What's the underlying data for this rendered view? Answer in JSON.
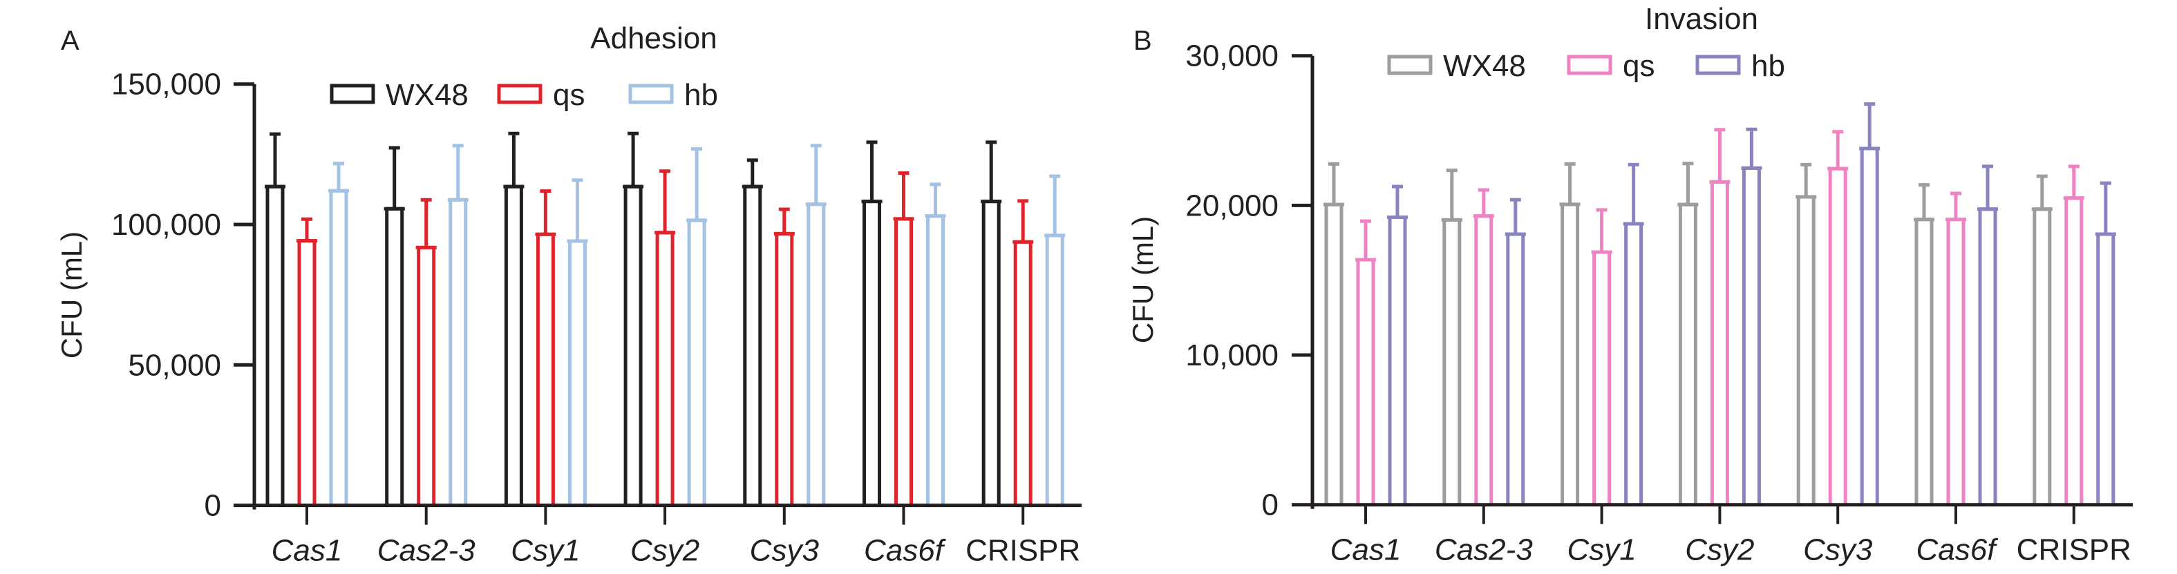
{
  "figure": {
    "panels": [
      "A",
      "B"
    ]
  },
  "chart_data": [
    {
      "panel": "A",
      "type": "bar",
      "title": "Adhesion",
      "xlabel": "",
      "ylabel": "CFU (mL)",
      "ylim": [
        0,
        150000
      ],
      "yticks": [
        0,
        50000,
        100000,
        150000
      ],
      "ytick_labels": [
        "0",
        "50,000",
        "100,000",
        "150,000"
      ],
      "grid": false,
      "legend_position": "top-center",
      "categories": [
        "Cas1",
        "Cas2-3",
        "Csy1",
        "Csy2",
        "Csy3",
        "Cas6f",
        "CRISPR"
      ],
      "category_italic": [
        true,
        true,
        true,
        true,
        true,
        true,
        false
      ],
      "series": [
        {
          "name": "WX48",
          "color": "#231f20",
          "values": [
            113500,
            105600,
            113500,
            113500,
            113500,
            108200,
            108200
          ],
          "error_upper": [
            132200,
            127300,
            132400,
            132400,
            122900,
            129300,
            129300
          ]
        },
        {
          "name": "qs",
          "color": "#e0242b",
          "values": [
            94200,
            91800,
            96500,
            97100,
            96700,
            102000,
            93800
          ],
          "error_upper": [
            101900,
            108800,
            111900,
            119000,
            105400,
            118300,
            108400
          ]
        },
        {
          "name": "hb",
          "color": "#a4c2e3",
          "values": [
            112000,
            108800,
            94100,
            101500,
            107200,
            103000,
            96100
          ],
          "error_upper": [
            121700,
            128100,
            115800,
            126900,
            128100,
            114300,
            117200
          ]
        }
      ]
    },
    {
      "panel": "B",
      "type": "bar",
      "title": "Invasion",
      "xlabel": "",
      "ylabel": "CFU (mL)",
      "ylim": [
        0,
        30000
      ],
      "yticks": [
        0,
        10000,
        20000,
        30000
      ],
      "ytick_labels": [
        "0",
        "10,000",
        "20,000",
        "30,000"
      ],
      "grid": false,
      "legend_position": "top-center",
      "categories": [
        "Cas1",
        "Cas2-3",
        "Csy1",
        "Csy2",
        "Csy3",
        "Cas6f",
        "CRISPR"
      ],
      "category_italic": [
        true,
        true,
        true,
        true,
        true,
        true,
        false
      ],
      "series": [
        {
          "name": "WX48",
          "color": "#9d9d9f",
          "values": [
            20060,
            19030,
            20070,
            20060,
            20570,
            19060,
            19750
          ],
          "error_upper": [
            22770,
            22340,
            22770,
            22800,
            22720,
            21370,
            21950
          ]
        },
        {
          "name": "qs",
          "color": "#ee82c3",
          "values": [
            16370,
            19290,
            16880,
            21570,
            22460,
            19060,
            20490
          ],
          "error_upper": [
            18950,
            21030,
            19700,
            25060,
            24920,
            20800,
            22610
          ]
        },
        {
          "name": "hb",
          "color": "#8884c0",
          "values": [
            19210,
            18080,
            18770,
            22490,
            23800,
            19750,
            18080
          ],
          "error_upper": [
            21260,
            20380,
            22720,
            25080,
            26770,
            22610,
            21490
          ]
        }
      ]
    }
  ]
}
